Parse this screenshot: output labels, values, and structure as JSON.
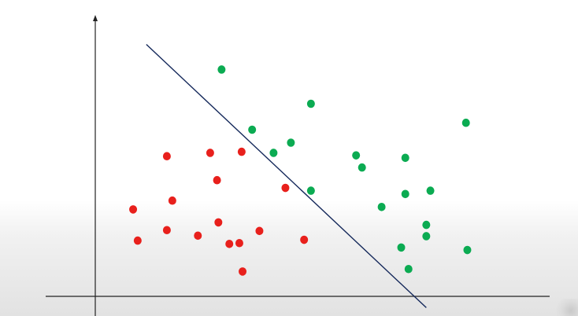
{
  "chart_data": {
    "type": "scatter",
    "title": "",
    "xlabel": "",
    "ylabel": "",
    "grid": false,
    "legend": "none",
    "xlim": [
      0,
      100
    ],
    "ylim": [
      0,
      100
    ],
    "series": [
      {
        "color": "#e8201c",
        "points": [
          [
            8.3,
            31.5
          ],
          [
            9.3,
            20.2
          ],
          [
            15.7,
            24.0
          ],
          [
            16.9,
            34.7
          ],
          [
            15.7,
            50.8
          ],
          [
            22.5,
            22.0
          ],
          [
            25.2,
            52.0
          ],
          [
            26.7,
            42.1
          ],
          [
            27.0,
            26.8
          ],
          [
            29.4,
            19.0
          ],
          [
            31.6,
            19.3
          ],
          [
            32.1,
            52.4
          ],
          [
            32.3,
            9.0
          ],
          [
            36.0,
            23.7
          ],
          [
            41.7,
            39.3
          ],
          [
            45.8,
            20.5
          ]
        ]
      },
      {
        "color": "#0bab52",
        "points": [
          [
            27.7,
            82.2
          ],
          [
            34.4,
            60.4
          ],
          [
            39.1,
            52.0
          ],
          [
            42.9,
            55.7
          ],
          [
            47.3,
            38.3
          ],
          [
            47.3,
            69.8
          ],
          [
            57.2,
            51.1
          ],
          [
            58.5,
            46.7
          ],
          [
            62.8,
            32.4
          ],
          [
            67.1,
            17.7
          ],
          [
            68.0,
            37.1
          ],
          [
            68.0,
            50.2
          ],
          [
            68.7,
            9.9
          ],
          [
            72.6,
            21.8
          ],
          [
            72.6,
            25.9
          ],
          [
            73.5,
            38.3
          ],
          [
            81.3,
            62.9
          ],
          [
            81.6,
            16.8
          ]
        ]
      }
    ],
    "decision_line": {
      "color": "#14285a",
      "from": [
        11.2,
        91.3
      ],
      "to": [
        72.6,
        -4.1
      ]
    }
  }
}
